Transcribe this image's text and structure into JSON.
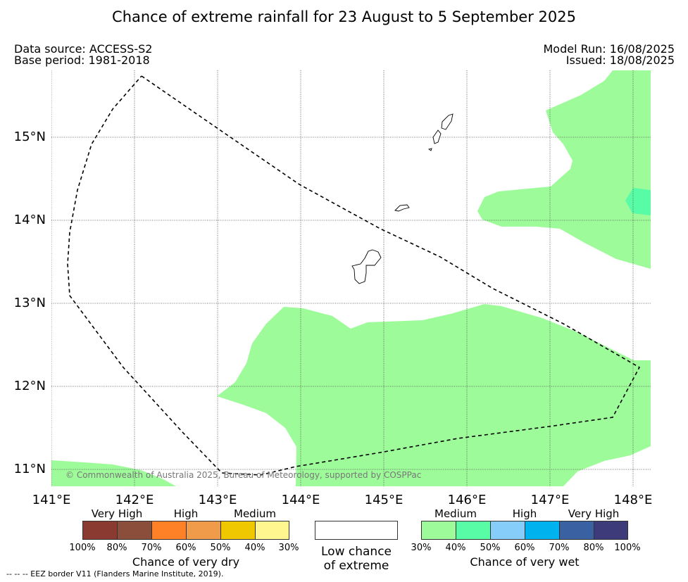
{
  "title": "Chance of extreme rainfall for 23 August to 5 September 2025",
  "data_source": "Data source: ACCESS-S2",
  "base_period": "Base period: 1981-2018",
  "model_run": "Model Run: 16/08/2025",
  "issued": "Issued: 18/08/2025",
  "copyright": "© Commonwealth of Australia 2025, Bureau of Meteorology, supported by COSPPac",
  "lat_labels": [
    "15°N",
    "14°N",
    "13°N",
    "12°N",
    "11°N"
  ],
  "lon_labels": [
    "141°E",
    "142°E",
    "143°E",
    "144°E",
    "145°E",
    "146°E",
    "147°E",
    "148°E"
  ],
  "legend_dry": {
    "title": "Chance of very dry",
    "categories": [
      "Very High",
      "High",
      "Medium"
    ],
    "ticks": [
      "100%",
      "80%",
      "70%",
      "60%",
      "50%",
      "40%",
      "30%"
    ],
    "colors": [
      "#8b3a32",
      "#8b4e3b",
      "#ff8127",
      "#ef9b4a",
      "#f0c800",
      "#fff68f"
    ]
  },
  "legend_low": {
    "line1": "Low chance",
    "line2": "of extreme",
    "color": "#ffffff"
  },
  "legend_wet": {
    "title": "Chance of very wet",
    "categories": [
      "Medium",
      "High",
      "Very High"
    ],
    "ticks": [
      "30%",
      "40%",
      "50%",
      "60%",
      "70%",
      "80%",
      "100%"
    ],
    "colors": [
      "#9efb9a",
      "#58fca6",
      "#87cdfa",
      "#00b2ee",
      "#3a62a2",
      "#3e3b7b"
    ]
  },
  "footnote": "--  --  -- EEZ border V11 (Flanders Marine Institute, 2019).",
  "map_colors": {
    "medium_wet": "#9efb9a",
    "high_wet_50": "#58fca6"
  }
}
